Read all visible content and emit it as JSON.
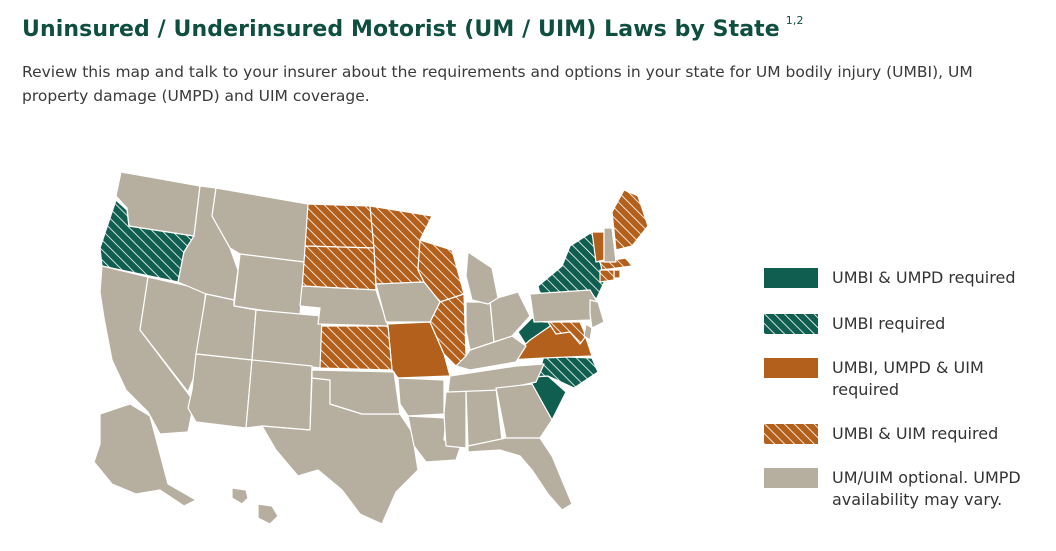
{
  "header": {
    "title": "Uninsured / Underinsured Motorist (UM / UIM) Laws by State",
    "title_footnotes": "1,2",
    "subtitle": "Review this map and talk to your insurer about the requirements and options in your state for UM bodily injury (UMBI), UM property damage (UMPD) and UIM coverage."
  },
  "colors": {
    "dark_green": "#0f5e4f",
    "orange": "#b2601b",
    "gray": "#b6ae9f",
    "hatch_line": "#ffffff",
    "title": "#0f4f40"
  },
  "legend": [
    {
      "key": "umbi_umpd",
      "label": "UMBI & UMPD required",
      "fill": "solid",
      "color": "#0f5e4f"
    },
    {
      "key": "umbi",
      "label": "UMBI required",
      "fill": "hatch",
      "color": "#0f5e4f"
    },
    {
      "key": "umbi_umpd_uim",
      "label": "UMBI, UMPD & UIM required",
      "fill": "solid",
      "color": "#b2601b"
    },
    {
      "key": "umbi_uim",
      "label": "UMBI & UIM required",
      "fill": "hatch",
      "color": "#b2601b"
    },
    {
      "key": "optional",
      "label": "UM/UIM optional. UMPD availability may vary.",
      "fill": "solid",
      "color": "#b6ae9f"
    }
  ],
  "states": {
    "umbi_umpd": [
      "WV",
      "SC"
    ],
    "umbi": [
      "OR",
      "NY",
      "NC"
    ],
    "umbi_umpd_uim": [
      "MO",
      "VA",
      "VT",
      "RI"
    ],
    "umbi_uim": [
      "ND",
      "SD",
      "MN",
      "WI",
      "IL",
      "KS",
      "ME",
      "MA",
      "MD",
      "CT"
    ],
    "optional": [
      "WA",
      "CA",
      "NV",
      "ID",
      "MT",
      "WY",
      "UT",
      "CO",
      "AZ",
      "NM",
      "TX",
      "OK",
      "NE",
      "IA",
      "AR",
      "LA",
      "MS",
      "AL",
      "TN",
      "KY",
      "IN",
      "OH",
      "MI",
      "GA",
      "FL",
      "PA",
      "NJ",
      "DE",
      "NH",
      "AK",
      "HI"
    ]
  }
}
